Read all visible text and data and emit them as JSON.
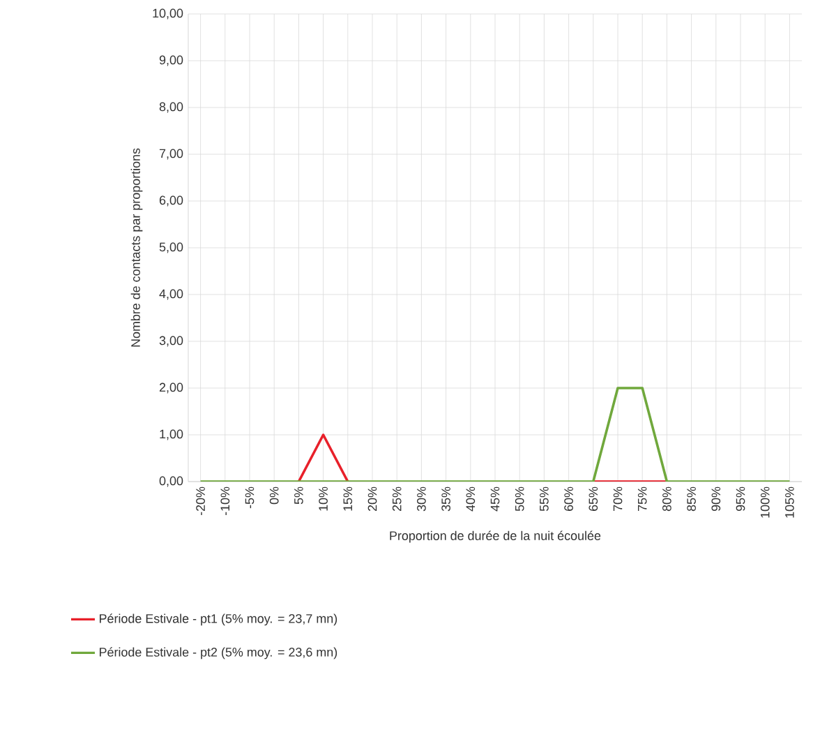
{
  "chart_data": {
    "type": "line",
    "xlabel": "Proportion de durée de la nuit écoulée",
    "ylabel": "Nombre de contacts par proportions",
    "categories": [
      "-20%",
      "-10%",
      "-5%",
      "0%",
      "5%",
      "10%",
      "15%",
      "20%",
      "25%",
      "30%",
      "35%",
      "40%",
      "45%",
      "50%",
      "55%",
      "60%",
      "65%",
      "70%",
      "75%",
      "80%",
      "85%",
      "90%",
      "95%",
      "100%",
      "105%"
    ],
    "ylim": [
      0,
      10
    ],
    "yticks": [
      {
        "value": 0,
        "label": "0,00"
      },
      {
        "value": 1,
        "label": "1,00"
      },
      {
        "value": 2,
        "label": "2,00"
      },
      {
        "value": 3,
        "label": "3,00"
      },
      {
        "value": 4,
        "label": "4,00"
      },
      {
        "value": 5,
        "label": "5,00"
      },
      {
        "value": 6,
        "label": "6,00"
      },
      {
        "value": 7,
        "label": "7,00"
      },
      {
        "value": 8,
        "label": "8,00"
      },
      {
        "value": 9,
        "label": "9,00"
      },
      {
        "value": 10,
        "label": "10,00"
      }
    ],
    "grid": true,
    "legend": "bottom",
    "marker": "none",
    "line_style": "solid",
    "series": [
      {
        "name": "Période Estivale - pt1 (5% moy. = 23,7 mn)",
        "color": "#e8202a",
        "values": [
          null,
          null,
          null,
          null,
          0,
          1,
          0,
          null,
          null,
          null,
          null,
          null,
          null,
          null,
          null,
          null,
          0,
          0,
          0,
          0,
          null,
          null,
          null,
          null,
          null
        ]
      },
      {
        "name": "Période Estivale - pt2 (5% moy. = 23,6 mn)",
        "color": "#70a83c",
        "values": [
          0,
          0,
          0,
          0,
          0,
          0,
          0,
          0,
          0,
          0,
          0,
          0,
          0,
          0,
          0,
          0,
          0,
          2,
          2,
          0,
          0,
          0,
          0,
          0,
          0
        ]
      }
    ]
  }
}
